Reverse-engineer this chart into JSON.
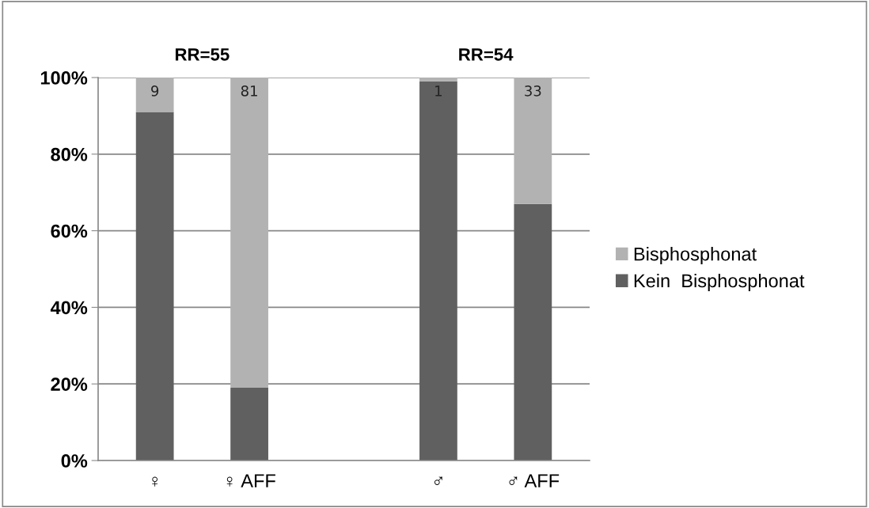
{
  "chart_data": {
    "type": "bar",
    "stacked": true,
    "categories": [
      "♀",
      "♀ AFF",
      null,
      "♂",
      "♂ AFF"
    ],
    "series": [
      {
        "name": "Kein  Bisphosphonat",
        "color": "#606060",
        "values": [
          91,
          19,
          null,
          99,
          67
        ]
      },
      {
        "name": "Bisphosphonat",
        "color": "#b2b2b2",
        "values": [
          9,
          81,
          null,
          1,
          33
        ],
        "value_labels": [
          "9",
          "81",
          null,
          "1",
          "33"
        ]
      }
    ],
    "ylim": [
      0,
      100
    ],
    "yticks": [
      {
        "value": 0,
        "label": "0%"
      },
      {
        "value": 20,
        "label": "20%"
      },
      {
        "value": 40,
        "label": "40%"
      },
      {
        "value": 60,
        "label": "60%"
      },
      {
        "value": 80,
        "label": "80%"
      },
      {
        "value": 100,
        "label": "100%"
      }
    ],
    "grid": "y",
    "legend": "right",
    "annotations": [
      "RR=55",
      "RR=54"
    ]
  }
}
